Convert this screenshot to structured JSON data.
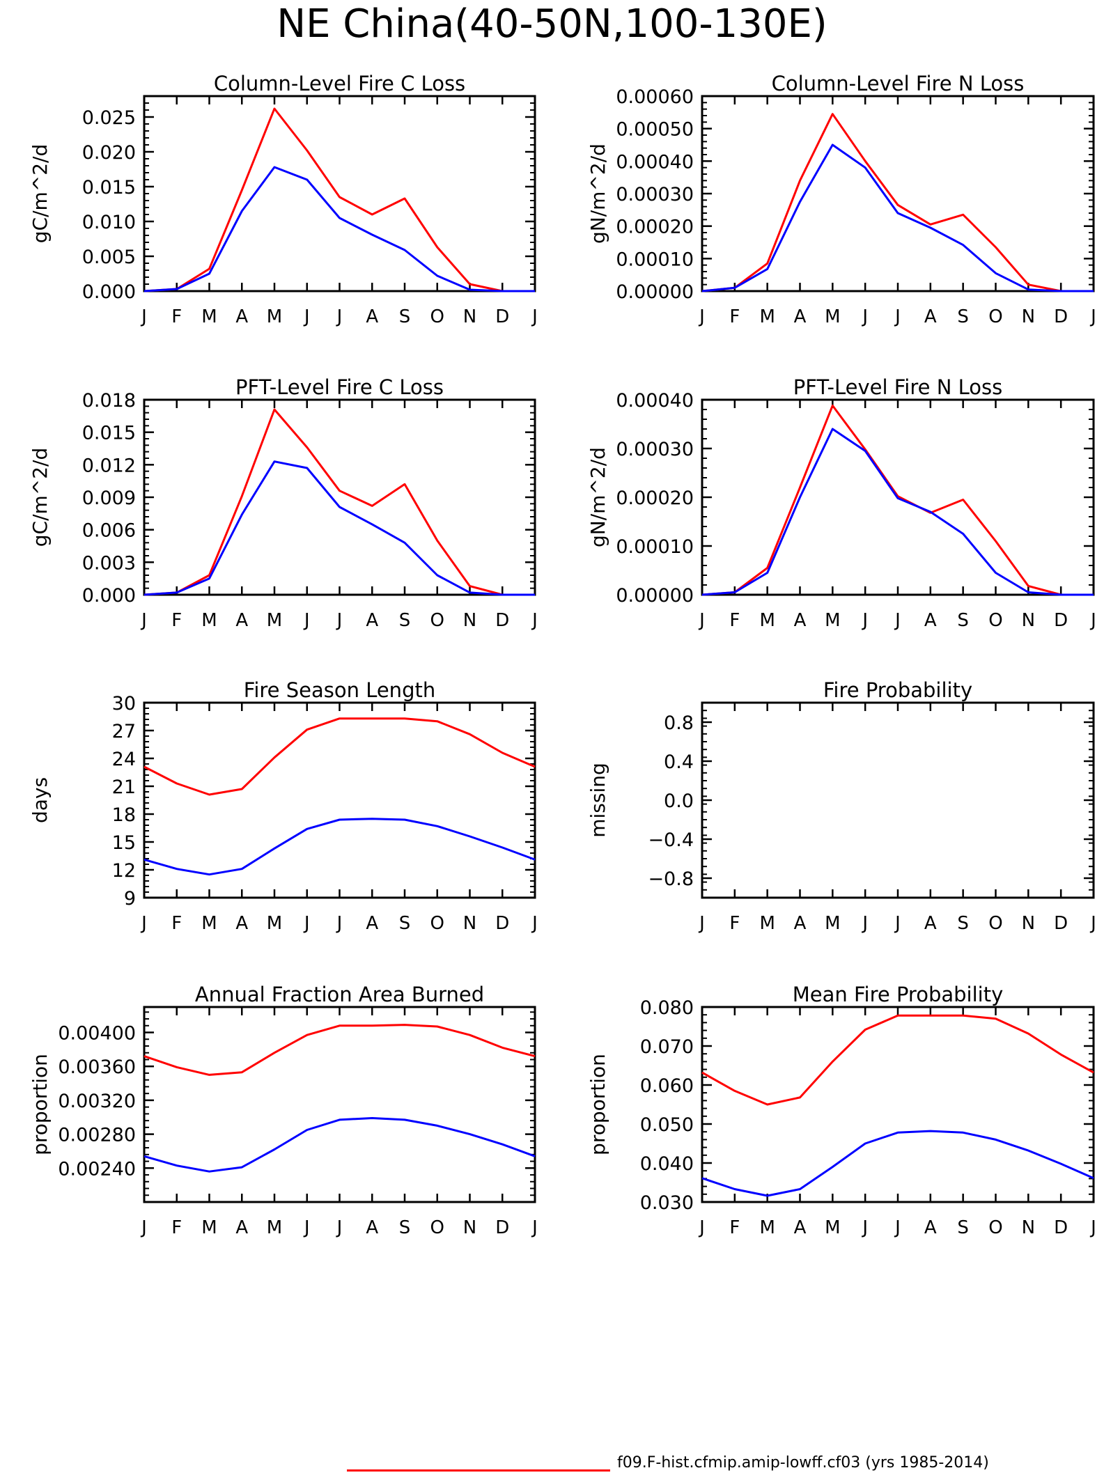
{
  "title": "NE China(40-50N,100-130E)",
  "colors": {
    "series_a": "#ff0000",
    "series_b": "#0000ff",
    "axis": "#000000"
  },
  "legend": {
    "label": "f09.F-hist.cfmip.amip-lowff.cf03 (yrs 1985-2014)"
  },
  "chart_data": [
    {
      "type": "line",
      "title": "Column-Level Fire C Loss",
      "ylabel": "gC/m^2/d",
      "categories": [
        "J",
        "F",
        "M",
        "A",
        "M",
        "J",
        "J",
        "A",
        "S",
        "O",
        "N",
        "D",
        "J"
      ],
      "ylim": [
        0,
        0.028
      ],
      "yticks": [
        "0.000",
        "0.005",
        "0.010",
        "0.015",
        "0.020",
        "0.025"
      ],
      "series": [
        {
          "values": [
            0,
            0.0003,
            0.0032,
            0.0145,
            0.0262,
            0.0202,
            0.0135,
            0.011,
            0.0133,
            0.0063,
            0.001,
            0,
            0
          ]
        },
        {
          "values": [
            0,
            0.0003,
            0.0025,
            0.0115,
            0.0178,
            0.016,
            0.0105,
            0.0081,
            0.0059,
            0.0022,
            0.0002,
            0,
            0
          ]
        }
      ]
    },
    {
      "type": "line",
      "title": "Column-Level Fire N Loss",
      "ylabel": "gN/m^2/d",
      "categories": [
        "J",
        "F",
        "M",
        "A",
        "M",
        "J",
        "J",
        "A",
        "S",
        "O",
        "N",
        "D",
        "J"
      ],
      "ylim": [
        0,
        0.0006
      ],
      "yticks": [
        "0.00000",
        "0.00010",
        "0.00020",
        "0.00030",
        "0.00040",
        "0.00050",
        "0.00060"
      ],
      "series": [
        {
          "values": [
            0,
            1e-05,
            8.5e-05,
            0.00034,
            0.000545,
            0.0004,
            0.000265,
            0.000205,
            0.000235,
            0.000135,
            2e-05,
            0,
            0
          ]
        },
        {
          "values": [
            0,
            1e-05,
            6.8e-05,
            0.000275,
            0.00045,
            0.00038,
            0.00024,
            0.000195,
            0.000142,
            5.5e-05,
            5e-06,
            0,
            0
          ]
        }
      ]
    },
    {
      "type": "line",
      "title": "PFT-Level Fire C Loss",
      "ylabel": "gC/m^2/d",
      "categories": [
        "J",
        "F",
        "M",
        "A",
        "M",
        "J",
        "J",
        "A",
        "S",
        "O",
        "N",
        "D",
        "J"
      ],
      "ylim": [
        0,
        0.018
      ],
      "yticks": [
        "0.000",
        "0.003",
        "0.006",
        "0.009",
        "0.012",
        "0.015",
        "0.018"
      ],
      "series": [
        {
          "values": [
            0,
            0.0002,
            0.0018,
            0.0091,
            0.0171,
            0.0136,
            0.0096,
            0.0082,
            0.0102,
            0.005,
            0.0008,
            0,
            0
          ]
        },
        {
          "values": [
            0,
            0.0002,
            0.0015,
            0.0074,
            0.0123,
            0.0117,
            0.0081,
            0.0065,
            0.0048,
            0.0018,
            0.0002,
            0,
            0
          ]
        }
      ]
    },
    {
      "type": "line",
      "title": "PFT-Level Fire N Loss",
      "ylabel": "gN/m^2/d",
      "categories": [
        "J",
        "F",
        "M",
        "A",
        "M",
        "J",
        "J",
        "A",
        "S",
        "O",
        "N",
        "D",
        "J"
      ],
      "ylim": [
        0,
        0.0004
      ],
      "yticks": [
        "0.00000",
        "0.00010",
        "0.00020",
        "0.00030",
        "0.00040"
      ],
      "series": [
        {
          "values": [
            0,
            5e-06,
            5.5e-05,
            0.00022,
            0.000388,
            0.000298,
            0.000202,
            0.000168,
            0.000195,
            0.00011,
            1.8e-05,
            0,
            0
          ]
        },
        {
          "values": [
            0,
            5e-06,
            4.5e-05,
            0.0002,
            0.00034,
            0.000295,
            0.000198,
            0.00017,
            0.000125,
            4.5e-05,
            5e-06,
            0,
            0
          ]
        }
      ]
    },
    {
      "type": "line",
      "title": "Fire Season Length",
      "ylabel": "days",
      "categories": [
        "J",
        "F",
        "M",
        "A",
        "M",
        "J",
        "J",
        "A",
        "S",
        "O",
        "N",
        "D",
        "J"
      ],
      "ylim": [
        9,
        30
      ],
      "yticks": [
        "9",
        "12",
        "15",
        "18",
        "21",
        "24",
        "27",
        "30"
      ],
      "series": [
        {
          "values": [
            23.1,
            21.3,
            20.1,
            20.7,
            24.1,
            27.1,
            28.3,
            28.3,
            28.3,
            28.0,
            26.6,
            24.6,
            23.1
          ]
        },
        {
          "values": [
            13.1,
            12.1,
            11.5,
            12.1,
            14.3,
            16.4,
            17.4,
            17.5,
            17.4,
            16.7,
            15.6,
            14.4,
            13.1
          ]
        }
      ]
    },
    {
      "type": "line",
      "title": "Fire Probability",
      "ylabel": "missing",
      "categories": [
        "J",
        "F",
        "M",
        "A",
        "M",
        "J",
        "J",
        "A",
        "S",
        "O",
        "N",
        "D",
        "J"
      ],
      "ylim": [
        -1,
        1
      ],
      "yticks": [
        "-0.8",
        "-0.4",
        "0.0",
        "0.4",
        "0.8"
      ],
      "series": []
    },
    {
      "type": "line",
      "title": "Annual Fraction Area Burned",
      "ylabel": "proportion",
      "categories": [
        "J",
        "F",
        "M",
        "A",
        "M",
        "J",
        "J",
        "A",
        "S",
        "O",
        "N",
        "D",
        "J"
      ],
      "ylim": [
        0.002,
        0.0043
      ],
      "yticks": [
        "0.00240",
        "0.00280",
        "0.00320",
        "0.00360",
        "0.00400"
      ],
      "series": [
        {
          "values": [
            0.00372,
            0.00359,
            0.0035,
            0.00353,
            0.00376,
            0.00397,
            0.00408,
            0.00408,
            0.00409,
            0.00407,
            0.00397,
            0.00382,
            0.00372
          ]
        },
        {
          "values": [
            0.00254,
            0.00243,
            0.00236,
            0.00241,
            0.00262,
            0.00285,
            0.00297,
            0.00299,
            0.00297,
            0.0029,
            0.0028,
            0.00268,
            0.00254
          ]
        }
      ]
    },
    {
      "type": "line",
      "title": "Mean Fire Probability",
      "ylabel": "proportion",
      "categories": [
        "J",
        "F",
        "M",
        "A",
        "M",
        "J",
        "J",
        "A",
        "S",
        "O",
        "N",
        "D",
        "J"
      ],
      "ylim": [
        0.03,
        0.08
      ],
      "yticks": [
        "0.030",
        "0.040",
        "0.050",
        "0.060",
        "0.070",
        "0.080"
      ],
      "series": [
        {
          "values": [
            0.0632,
            0.0585,
            0.055,
            0.0568,
            0.066,
            0.0742,
            0.0778,
            0.0778,
            0.0778,
            0.077,
            0.0732,
            0.0678,
            0.0632
          ]
        },
        {
          "values": [
            0.0361,
            0.0333,
            0.0316,
            0.0333,
            0.039,
            0.045,
            0.0478,
            0.0482,
            0.0478,
            0.046,
            0.0432,
            0.0398,
            0.0361
          ]
        }
      ]
    }
  ]
}
